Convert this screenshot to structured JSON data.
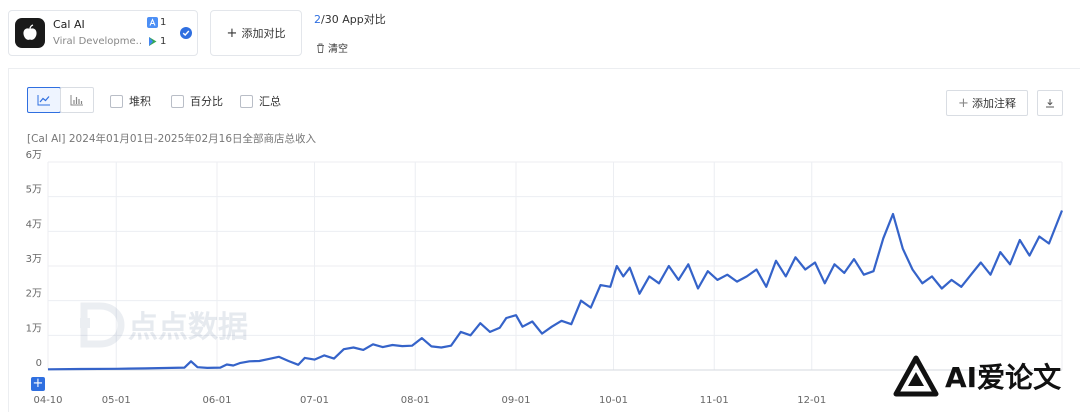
{
  "app_card": {
    "name": "Cal AI",
    "developer": "Viral Developme...",
    "ios_count": "1",
    "android_count": "1",
    "colors": {
      "icon_bg": "#1a1a1a",
      "check": "#2f6fe0"
    }
  },
  "compare": {
    "add_label": "添加对比",
    "count_current": "2",
    "count_rest": "/30 App对比",
    "clear_label": "清空"
  },
  "toolbar": {
    "line_icon": "line-chart-icon",
    "bar_icon": "bar-chart-icon",
    "checkboxes": [
      {
        "label": "堆积",
        "checked": false
      },
      {
        "label": "百分比",
        "checked": false
      },
      {
        "label": "汇总",
        "checked": false
      }
    ],
    "add_note_label": "添加注释",
    "download_icon": "download-icon"
  },
  "watermark": {
    "center": "点点数据",
    "right": "AI爱论文"
  },
  "chart_data": {
    "type": "line",
    "title": "[Cal AI] 2024年01月01日-2025年02月16日全部商店总收入",
    "xlabel": "",
    "ylabel": "",
    "ylim": [
      0,
      60000
    ],
    "y_ticks": [
      {
        "value": 0,
        "label": "0"
      },
      {
        "value": 10000,
        "label": "1万"
      },
      {
        "value": 20000,
        "label": "2万"
      },
      {
        "value": 30000,
        "label": "3万"
      },
      {
        "value": 40000,
        "label": "4万"
      },
      {
        "value": 50000,
        "label": "5万"
      },
      {
        "value": 60000,
        "label": "6万"
      }
    ],
    "x_range": [
      "2024-04-10",
      "2025-02-16"
    ],
    "x_ticks": [
      {
        "date": "2024-04-10",
        "label": "04-10"
      },
      {
        "date": "2024-05-01",
        "label": "05-01"
      },
      {
        "date": "2024-06-01",
        "label": "06-01"
      },
      {
        "date": "2024-07-01",
        "label": "07-01"
      },
      {
        "date": "2024-08-01",
        "label": "08-01"
      },
      {
        "date": "2024-09-01",
        "label": "09-01"
      },
      {
        "date": "2024-10-01",
        "label": "10-01"
      },
      {
        "date": "2024-11-01",
        "label": "11-01"
      },
      {
        "date": "2024-12-01",
        "label": "12-01"
      }
    ],
    "grid": true,
    "line_color": "#3563c9",
    "series": [
      {
        "name": "",
        "points": [
          [
            "2024-04-10",
            200
          ],
          [
            "2024-04-20",
            300
          ],
          [
            "2024-05-01",
            350
          ],
          [
            "2024-05-10",
            450
          ],
          [
            "2024-05-18",
            600
          ],
          [
            "2024-05-22",
            700
          ],
          [
            "2024-05-24",
            2500
          ],
          [
            "2024-05-26",
            800
          ],
          [
            "2024-05-29",
            600
          ],
          [
            "2024-06-02",
            700
          ],
          [
            "2024-06-04",
            1600
          ],
          [
            "2024-06-06",
            1300
          ],
          [
            "2024-06-08",
            2000
          ],
          [
            "2024-06-11",
            2500
          ],
          [
            "2024-06-14",
            2600
          ],
          [
            "2024-06-17",
            3200
          ],
          [
            "2024-06-20",
            3800
          ],
          [
            "2024-06-23",
            2600
          ],
          [
            "2024-06-26",
            1500
          ],
          [
            "2024-06-28",
            3500
          ],
          [
            "2024-07-01",
            3000
          ],
          [
            "2024-07-04",
            4200
          ],
          [
            "2024-07-07",
            3300
          ],
          [
            "2024-07-10",
            6000
          ],
          [
            "2024-07-13",
            6500
          ],
          [
            "2024-07-16",
            5800
          ],
          [
            "2024-07-19",
            7400
          ],
          [
            "2024-07-22",
            6600
          ],
          [
            "2024-07-25",
            7200
          ],
          [
            "2024-07-28",
            6900
          ],
          [
            "2024-07-31",
            7000
          ],
          [
            "2024-08-03",
            9200
          ],
          [
            "2024-08-06",
            6800
          ],
          [
            "2024-08-09",
            6500
          ],
          [
            "2024-08-12",
            7000
          ],
          [
            "2024-08-15",
            11000
          ],
          [
            "2024-08-18",
            10000
          ],
          [
            "2024-08-21",
            13500
          ],
          [
            "2024-08-24",
            11000
          ],
          [
            "2024-08-27",
            12200
          ],
          [
            "2024-08-29",
            15000
          ],
          [
            "2024-09-01",
            15800
          ],
          [
            "2024-09-03",
            12500
          ],
          [
            "2024-09-06",
            14000
          ],
          [
            "2024-09-09",
            10500
          ],
          [
            "2024-09-12",
            12500
          ],
          [
            "2024-09-15",
            14200
          ],
          [
            "2024-09-18",
            13200
          ],
          [
            "2024-09-21",
            20000
          ],
          [
            "2024-09-24",
            18000
          ],
          [
            "2024-09-27",
            24500
          ],
          [
            "2024-09-30",
            24000
          ],
          [
            "2024-10-02",
            30000
          ],
          [
            "2024-10-04",
            27000
          ],
          [
            "2024-10-06",
            29500
          ],
          [
            "2024-10-09",
            22000
          ],
          [
            "2024-10-12",
            27000
          ],
          [
            "2024-10-15",
            25000
          ],
          [
            "2024-10-18",
            30000
          ],
          [
            "2024-10-21",
            26000
          ],
          [
            "2024-10-24",
            30500
          ],
          [
            "2024-10-27",
            23500
          ],
          [
            "2024-10-30",
            28500
          ],
          [
            "2024-11-02",
            26000
          ],
          [
            "2024-11-05",
            27500
          ],
          [
            "2024-11-08",
            25500
          ],
          [
            "2024-11-11",
            27000
          ],
          [
            "2024-11-14",
            29000
          ],
          [
            "2024-11-17",
            24000
          ],
          [
            "2024-11-20",
            31500
          ],
          [
            "2024-11-23",
            27000
          ],
          [
            "2024-11-26",
            32500
          ],
          [
            "2024-11-29",
            29000
          ],
          [
            "2024-12-02",
            31000
          ],
          [
            "2024-12-05",
            25000
          ],
          [
            "2024-12-08",
            30500
          ],
          [
            "2024-12-11",
            28000
          ],
          [
            "2024-12-14",
            32000
          ],
          [
            "2024-12-17",
            27500
          ],
          [
            "2024-12-20",
            28500
          ],
          [
            "2024-12-23",
            38000
          ],
          [
            "2024-12-26",
            45000
          ],
          [
            "2024-12-29",
            35000
          ],
          [
            "2025-01-01",
            29000
          ],
          [
            "2025-01-04",
            25000
          ],
          [
            "2025-01-07",
            27000
          ],
          [
            "2025-01-10",
            23500
          ],
          [
            "2025-01-13",
            26000
          ],
          [
            "2025-01-16",
            24000
          ],
          [
            "2025-01-19",
            27500
          ],
          [
            "2025-01-22",
            31000
          ],
          [
            "2025-01-25",
            27500
          ],
          [
            "2025-01-28",
            34000
          ],
          [
            "2025-01-31",
            30500
          ],
          [
            "2025-02-03",
            37500
          ],
          [
            "2025-02-06",
            33000
          ],
          [
            "2025-02-09",
            38500
          ],
          [
            "2025-02-12",
            36500
          ],
          [
            "2025-02-16",
            46000
          ]
        ]
      }
    ]
  }
}
